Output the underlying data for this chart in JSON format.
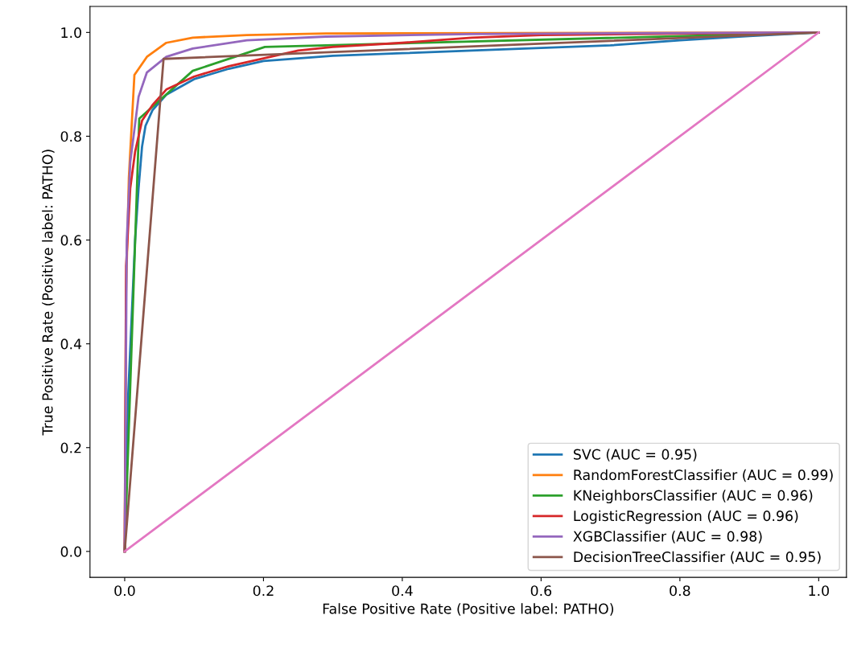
{
  "chart_data": {
    "type": "line",
    "xlabel": "False Positive Rate (Positive label: PATHO)",
    "ylabel": "True Positive Rate (Positive label: PATHO)",
    "xlim": [
      -0.05,
      1.04
    ],
    "ylim": [
      -0.05,
      1.05
    ],
    "xticks": [
      {
        "value": 0,
        "label": "0.0"
      },
      {
        "value": 0.2,
        "label": "0.2"
      },
      {
        "value": 0.4,
        "label": "0.4"
      },
      {
        "value": 0.6,
        "label": "0.6"
      },
      {
        "value": 0.8,
        "label": "0.8"
      },
      {
        "value": 1,
        "label": "1.0"
      }
    ],
    "yticks": [
      {
        "value": 0,
        "label": "0.0"
      },
      {
        "value": 0.2,
        "label": "0.2"
      },
      {
        "value": 0.4,
        "label": "0.4"
      },
      {
        "value": 0.6,
        "label": "0.6"
      },
      {
        "value": 0.8,
        "label": "0.8"
      },
      {
        "value": 1,
        "label": "1.0"
      }
    ],
    "grid": false,
    "legend": "bottom right",
    "marker": "none",
    "line_style": "solid",
    "series": [
      {
        "name": "SVC (AUC = 0.95)",
        "color": "#1f77b4",
        "x": [
          0,
          0.005,
          0.01,
          0.015,
          0.02,
          0.025,
          0.03,
          0.04,
          0.06,
          0.1,
          0.15,
          0.2,
          0.3,
          0.4,
          0.5,
          0.6,
          0.7,
          0.8,
          0.9,
          1
        ],
        "values": [
          0,
          0.3,
          0.45,
          0.6,
          0.7,
          0.78,
          0.82,
          0.85,
          0.88,
          0.91,
          0.93,
          0.945,
          0.955,
          0.96,
          0.965,
          0.97,
          0.975,
          0.985,
          0.993,
          1
        ]
      },
      {
        "name": "RandomForestClassifier (AUC = 0.99)",
        "color": "#ff7f0e",
        "x": [
          0,
          0.002,
          0.006,
          0.014,
          0.032,
          0.06,
          0.098,
          0.176,
          0.29,
          1
        ],
        "values": [
          0,
          0.5,
          0.72,
          0.918,
          0.953,
          0.98,
          0.99,
          0.995,
          0.998,
          1
        ]
      },
      {
        "name": "KNeighborsClassifier (AUC = 0.96)",
        "color": "#2ca02c",
        "x": [
          0,
          0.021,
          0.098,
          0.202,
          1
        ],
        "values": [
          0,
          0.834,
          0.926,
          0.972,
          1
        ]
      },
      {
        "name": "LogisticRegression (AUC = 0.96)",
        "color": "#d62728",
        "x": [
          0,
          0.002,
          0.008,
          0.015,
          0.025,
          0.04,
          0.06,
          0.1,
          0.15,
          0.2,
          0.25,
          0.3,
          0.4,
          0.5,
          0.6,
          1
        ],
        "values": [
          0,
          0.55,
          0.7,
          0.77,
          0.83,
          0.86,
          0.89,
          0.915,
          0.935,
          0.95,
          0.965,
          0.972,
          0.98,
          0.99,
          0.995,
          1
        ]
      },
      {
        "name": "XGBClassifier (AUC = 0.98)",
        "color": "#9467bd",
        "x": [
          0,
          0.003,
          0.008,
          0.02,
          0.032,
          0.06,
          0.098,
          0.176,
          0.29,
          0.5,
          1
        ],
        "values": [
          0,
          0.6,
          0.75,
          0.876,
          0.923,
          0.953,
          0.969,
          0.985,
          0.992,
          0.997,
          1
        ]
      },
      {
        "name": "DecisionTreeClassifier (AUC = 0.95)",
        "color": "#8c564b",
        "x": [
          0,
          0.056,
          1
        ],
        "values": [
          0,
          0.949,
          1
        ]
      },
      {
        "color": "#e377c2",
        "x": [
          0,
          1
        ],
        "values": [
          0,
          1
        ]
      }
    ]
  }
}
